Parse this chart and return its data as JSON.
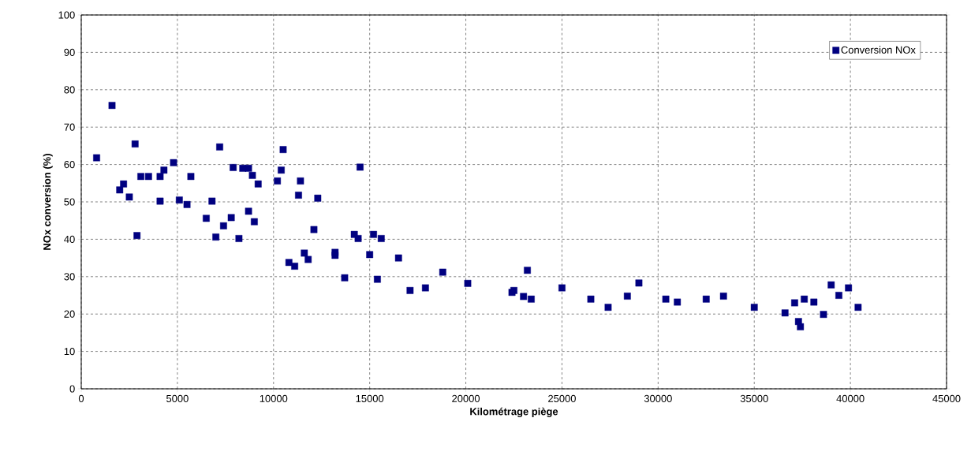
{
  "chart_data": {
    "type": "scatter",
    "xlabel": "Kilométrage piège",
    "ylabel": "NOx conversion (%)",
    "xlim": [
      0,
      45000
    ],
    "xticks": [
      0,
      5000,
      10000,
      15000,
      20000,
      25000,
      30000,
      35000,
      40000,
      45000
    ],
    "ylim": [
      0,
      100
    ],
    "yticks": [
      0,
      10,
      20,
      30,
      40,
      50,
      60,
      70,
      80,
      90,
      100
    ],
    "grid": true,
    "legend": "top right",
    "marker": "square",
    "series": [
      {
        "name": "Conversion NOx",
        "color": "#000080",
        "x": [
          800,
          1600,
          2000,
          2200,
          2500,
          2800,
          2900,
          3100,
          3500,
          4100,
          4100,
          4300,
          4800,
          5100,
          5500,
          5700,
          6500,
          6800,
          7000,
          7200,
          7400,
          7800,
          7900,
          8200,
          8400,
          8700,
          8700,
          8900,
          9000,
          9200,
          10200,
          10400,
          10500,
          10800,
          11100,
          11300,
          11400,
          11600,
          11800,
          12100,
          12300,
          13200,
          13200,
          13700,
          14200,
          14400,
          14500,
          15000,
          15200,
          15400,
          15600,
          16500,
          17100,
          17900,
          18800,
          20100,
          22400,
          22500,
          23000,
          23200,
          23400,
          25000,
          26500,
          27400,
          28400,
          29000,
          30400,
          31000,
          32500,
          33400,
          35000,
          36600,
          37100,
          37300,
          37400,
          37600,
          38100,
          38600,
          39000,
          39400,
          39900,
          40400
        ],
        "values": [
          61.8,
          75.8,
          53.2,
          54.8,
          51.3,
          65.5,
          41,
          56.8,
          56.8,
          50.2,
          56.8,
          58.5,
          60.5,
          50.5,
          49.3,
          56.8,
          45.6,
          50.2,
          40.6,
          64.7,
          43.6,
          45.8,
          59.2,
          40.2,
          59,
          59,
          47.5,
          57.1,
          44.7,
          54.8,
          55.6,
          58.5,
          64,
          33.8,
          32.8,
          51.8,
          55.6,
          36.3,
          34.6,
          42.6,
          51,
          35.7,
          36.5,
          29.7,
          41.3,
          40.2,
          59.3,
          35.9,
          41.3,
          29.3,
          40.2,
          35,
          26.3,
          27,
          31.2,
          28.2,
          25.8,
          26.3,
          24.7,
          31.7,
          24,
          27,
          24,
          21.8,
          24.8,
          28.3,
          24,
          23.2,
          24,
          24.8,
          21.8,
          20.3,
          23,
          18,
          16.6,
          24,
          23.2,
          19.9,
          27.8,
          25,
          27,
          21.8
        ]
      }
    ]
  }
}
